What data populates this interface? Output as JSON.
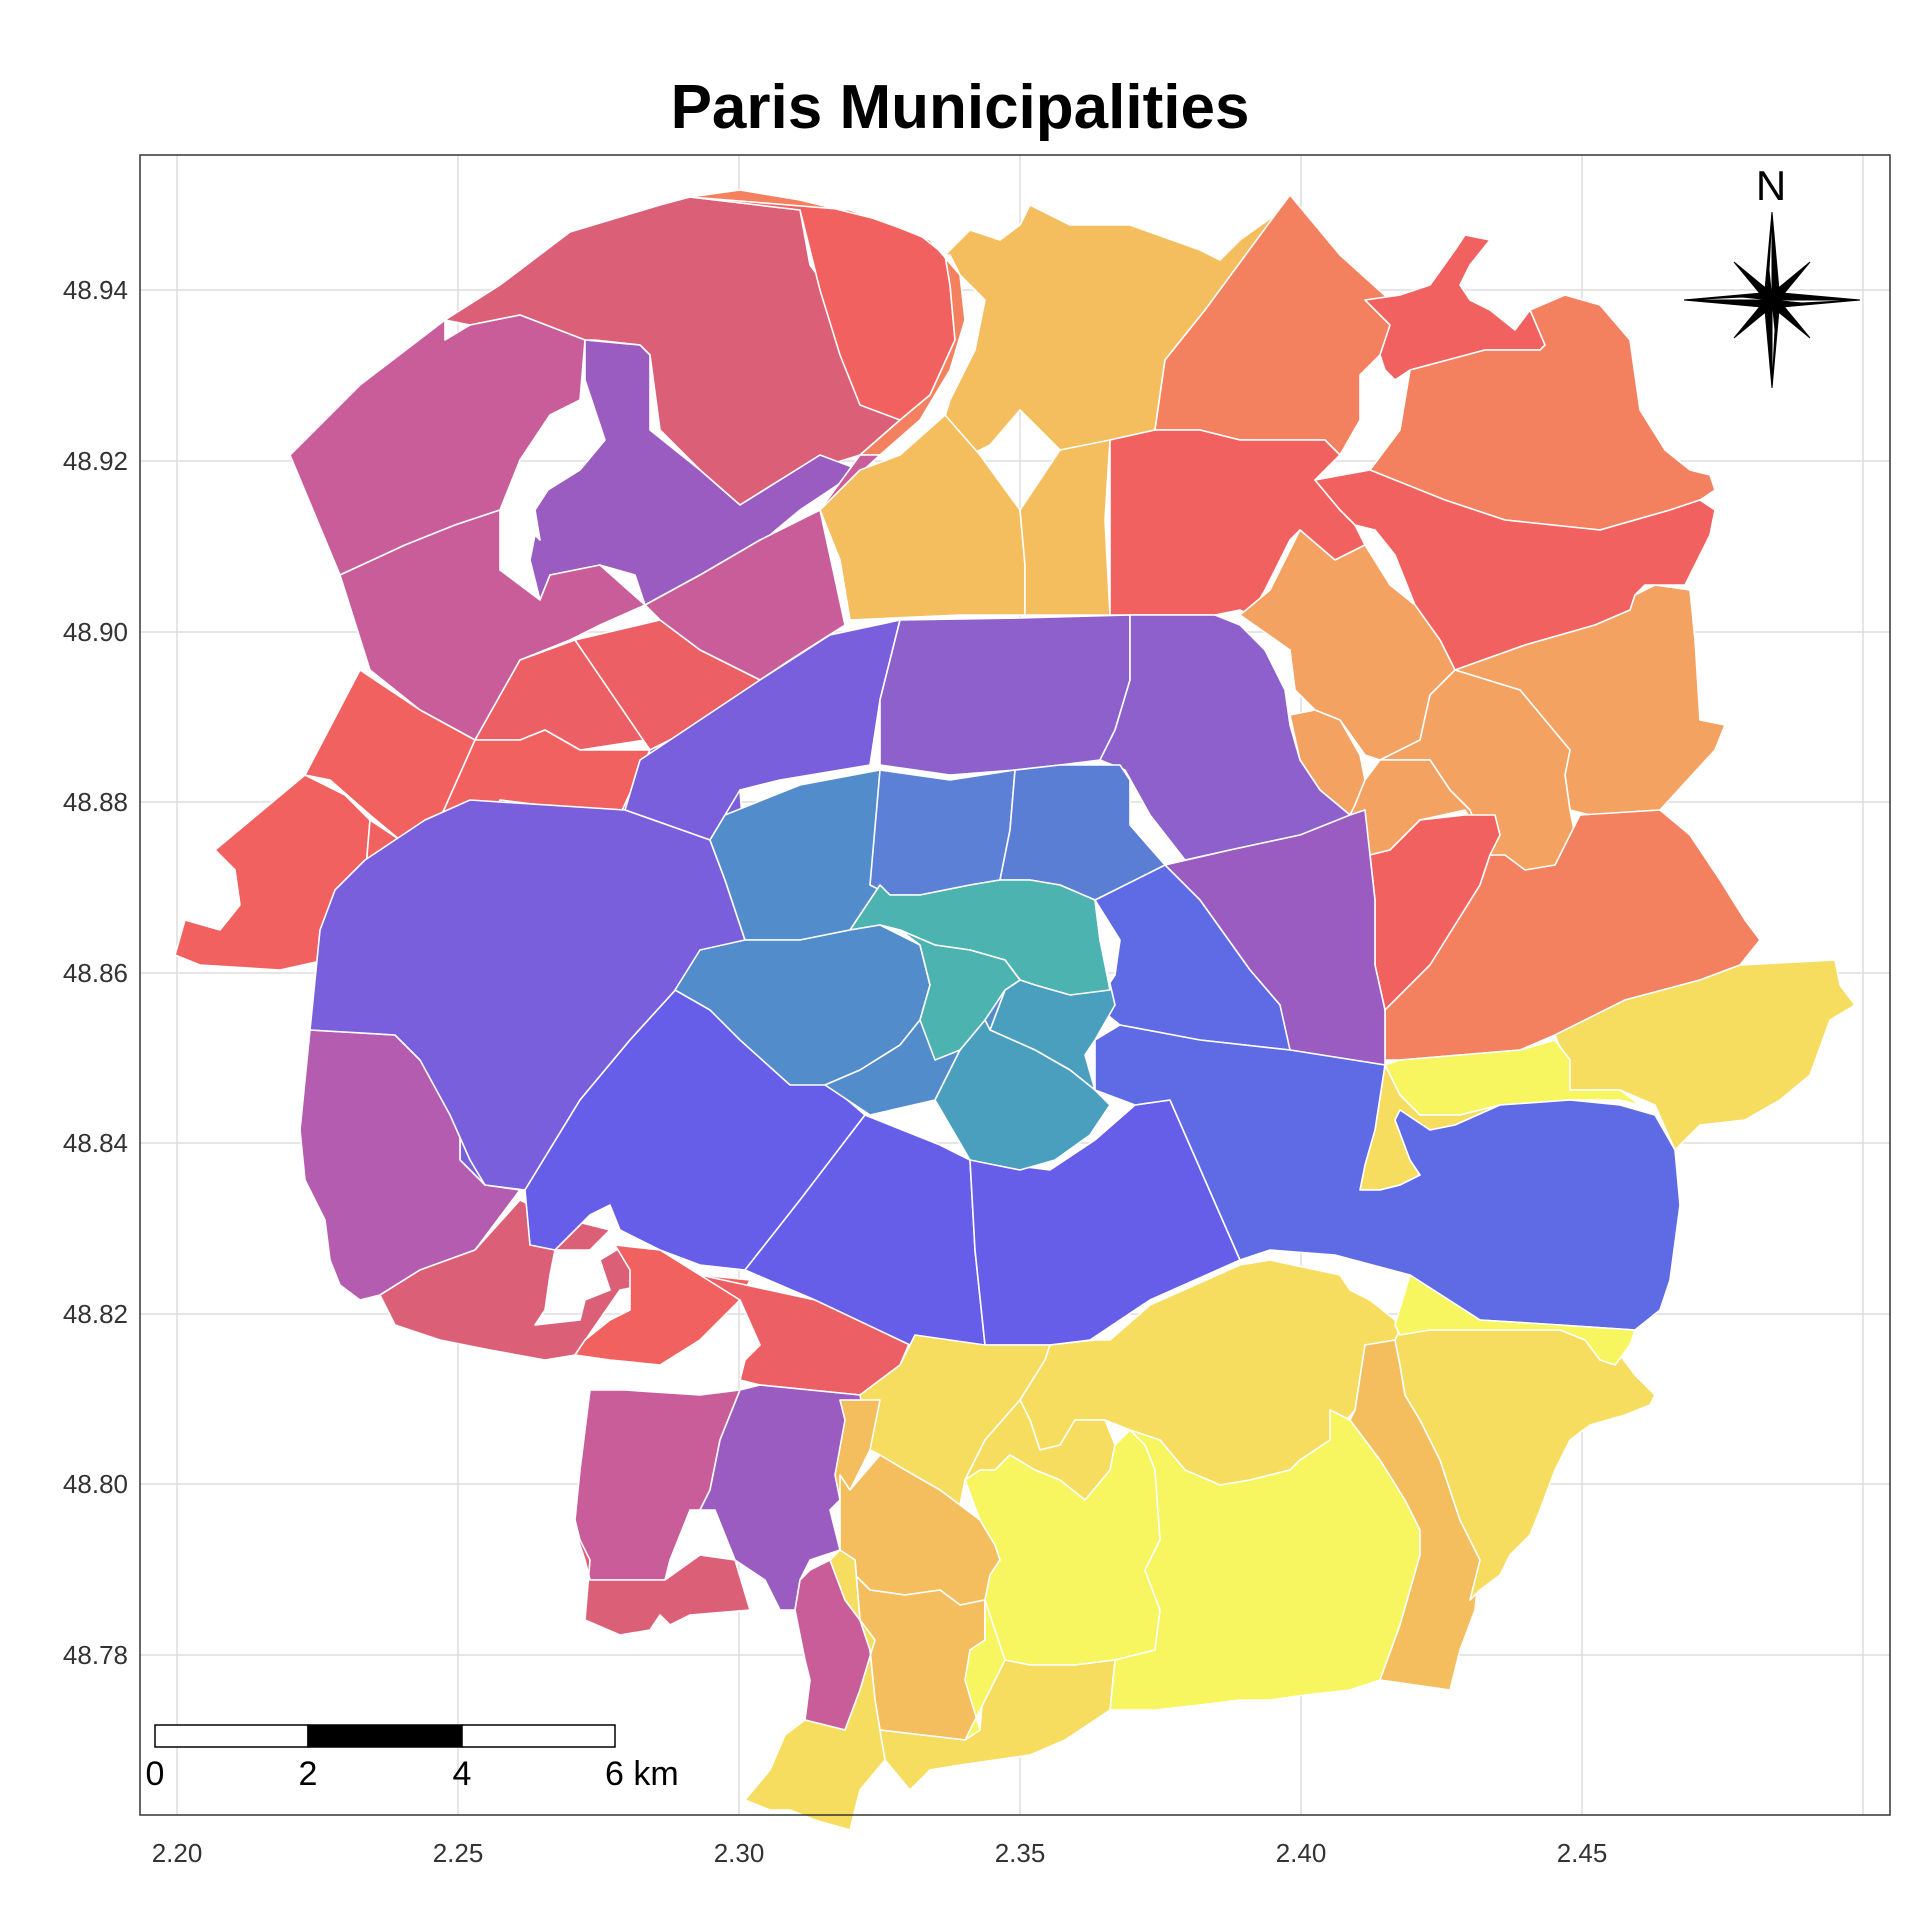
{
  "title": "Paris Municipalities",
  "axes": {
    "x_ticks": [
      "2.20",
      "2.25",
      "2.30",
      "2.35",
      "2.40",
      "2.45"
    ],
    "y_ticks": [
      "48.94",
      "48.92",
      "48.90",
      "48.88",
      "48.86",
      "48.84",
      "48.82",
      "48.80",
      "48.78"
    ]
  },
  "north_arrow": {
    "label": "N",
    "icon": "compass-rose-icon"
  },
  "scale_bar": {
    "labels": [
      "0",
      "2",
      "4",
      "6 km"
    ]
  },
  "colors": {
    "grid": "#dddddd",
    "frame": "#333333",
    "teal": "#4cb3b0",
    "steel_blue": "#528ccb",
    "blue": "#6467e8",
    "indigo": "#7a5fdc",
    "purple": "#9a5cc0",
    "magenta": "#c95d9a",
    "rose": "#dc5f78",
    "red": "#f0615f",
    "coral": "#f38160",
    "orange": "#f4a261",
    "amber": "#f4be5e",
    "yellow": "#f6dd5f",
    "lemon": "#f7f660"
  },
  "chart_data": {
    "type": "choropleth",
    "title": "Paris Municipalities",
    "xlim": [
      2.19,
      2.5
    ],
    "ylim": [
      48.765,
      48.955
    ],
    "grid": true
  }
}
